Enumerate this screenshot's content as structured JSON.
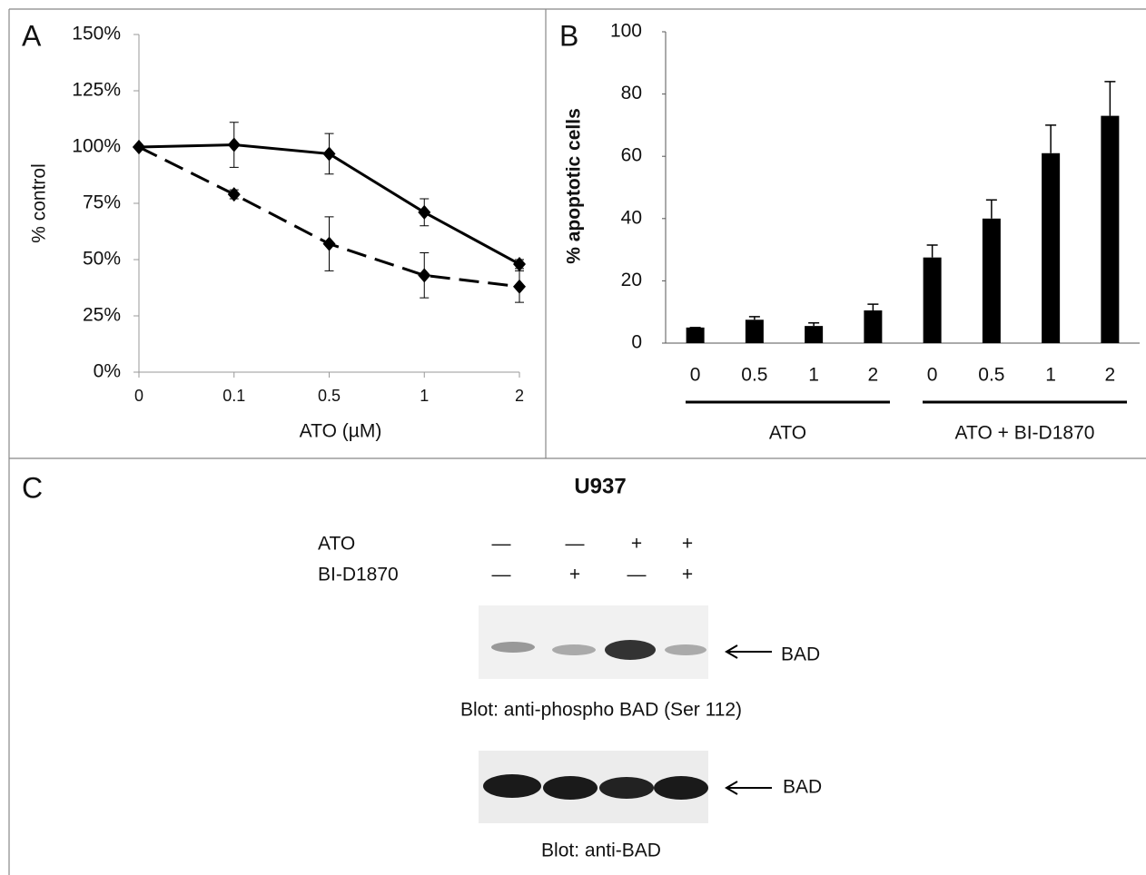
{
  "chart_data": [
    {
      "type": "line",
      "panel": "A",
      "xlabel": "ATO (µM)",
      "ylabel": "% control",
      "categories": [
        "0",
        "0.1",
        "0.5",
        "1",
        "2"
      ],
      "ylim": [
        0,
        150
      ],
      "yticks": [
        {
          "value": 0,
          "label": "0%"
        },
        {
          "value": 25,
          "label": "25%"
        },
        {
          "value": 50,
          "label": "50%"
        },
        {
          "value": 75,
          "label": "75%"
        },
        {
          "value": 100,
          "label": "100%"
        },
        {
          "value": 125,
          "label": "125%"
        },
        {
          "value": 150,
          "label": "150%"
        }
      ],
      "series": [
        {
          "color": "#000000",
          "dash": "solid",
          "values": [
            100,
            101,
            97,
            71,
            48
          ],
          "errors": [
            0,
            10,
            9,
            6,
            2
          ]
        },
        {
          "color": "#000000",
          "dash": "dashed",
          "values": [
            100,
            79,
            57,
            43,
            38
          ],
          "errors": [
            0,
            2,
            12,
            10,
            7
          ]
        }
      ]
    },
    {
      "type": "bar",
      "panel": "B",
      "ylabel": "% apoptotic cells",
      "categories": [
        "0",
        "0.5",
        "1",
        "2",
        "0",
        "0.5",
        "1",
        "2"
      ],
      "groups": [
        "ATO",
        "ATO + BI-D1870"
      ],
      "ylim": [
        0,
        100
      ],
      "yticks": [
        0,
        20,
        40,
        60,
        80,
        100
      ],
      "color": "#000000",
      "values": [
        5,
        7.5,
        5.5,
        10.5,
        27.5,
        40,
        61,
        73
      ],
      "errors": [
        0,
        1,
        1,
        2,
        4,
        6,
        9,
        11
      ]
    }
  ],
  "panel_c": {
    "panel": "C",
    "title": "U937",
    "rows": [
      {
        "label": "ATO",
        "signs": [
          "—",
          "—",
          "+",
          "+"
        ]
      },
      {
        "label": "BI-D1870",
        "signs": [
          "—",
          "+",
          "—",
          "+"
        ]
      }
    ],
    "blots": [
      {
        "band_label": "BAD",
        "caption": "Blot: anti-phospho  BAD (Ser 112)"
      },
      {
        "band_label": "BAD",
        "caption": "Blot: anti-BAD"
      }
    ]
  }
}
